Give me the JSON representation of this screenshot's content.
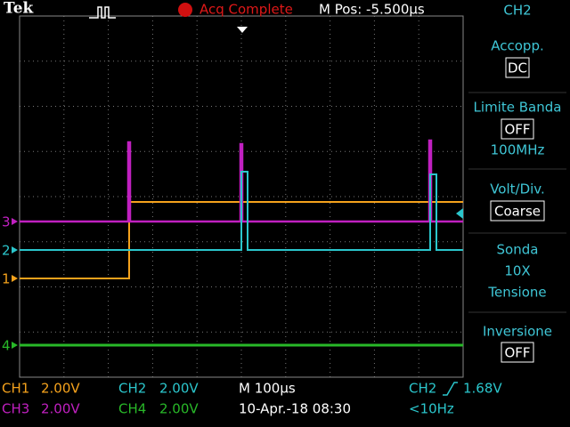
{
  "header": {
    "brand": "Tek",
    "status": "Acq Complete",
    "position": "M Pos: -5.500µs"
  },
  "channel_markers": [
    "3",
    "2",
    "1",
    "4"
  ],
  "menu": {
    "title": "CH2",
    "items": [
      {
        "label": "Accopp.",
        "value": "DC"
      },
      {
        "label": "Limite Banda",
        "value": "OFF",
        "detail": "100MHz"
      },
      {
        "label": "Volt/Div.",
        "value": "Coarse"
      },
      {
        "label": "Sonda",
        "value": "10X",
        "detail": "Tensione"
      },
      {
        "label": "Inversione",
        "value": "OFF"
      }
    ]
  },
  "footer": {
    "ch1": {
      "name": "CH1",
      "scale": "2.00V"
    },
    "ch2": {
      "name": "CH2",
      "scale": "2.00V"
    },
    "ch3": {
      "name": "CH3",
      "scale": "2.00V"
    },
    "ch4": {
      "name": "CH4",
      "scale": "2.00V"
    },
    "timebase": "M 100µs",
    "date": "10-Apr.-18 08:30",
    "trigger": {
      "source": "CH2",
      "level": "1.68V",
      "frequency": "<10Hz"
    }
  }
}
